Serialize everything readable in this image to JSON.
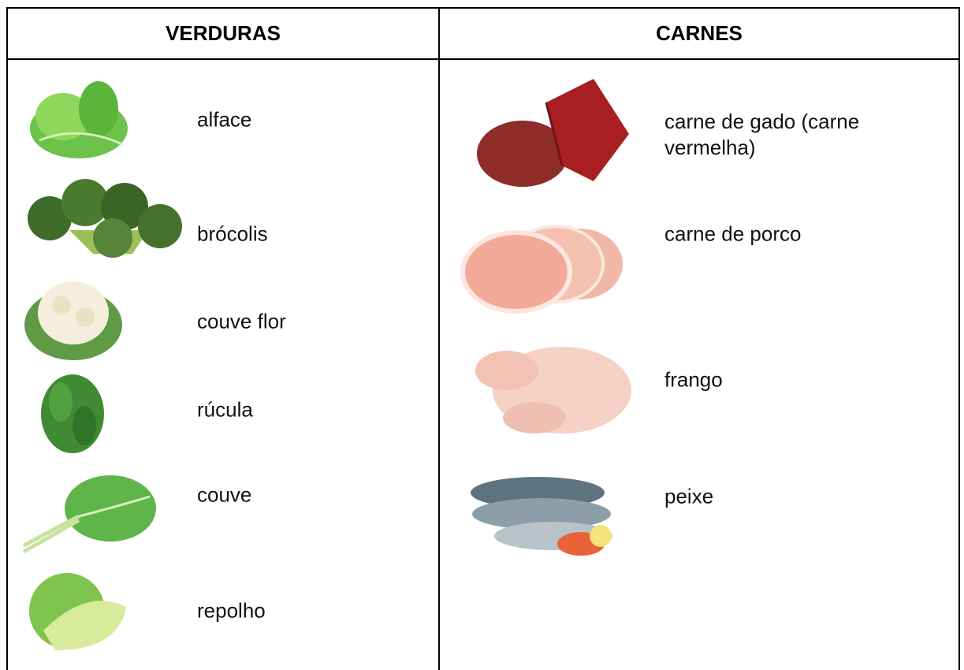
{
  "table": {
    "headers": [
      "VERDURAS",
      "CARNES"
    ],
    "columns": [
      [
        "alface",
        "brócolis",
        "couve flor",
        "rúcula",
        "couve",
        "repolho"
      ],
      [
        "carne de gado (carne vermelha)",
        "carne de porco",
        "frango",
        "peixe"
      ]
    ]
  }
}
